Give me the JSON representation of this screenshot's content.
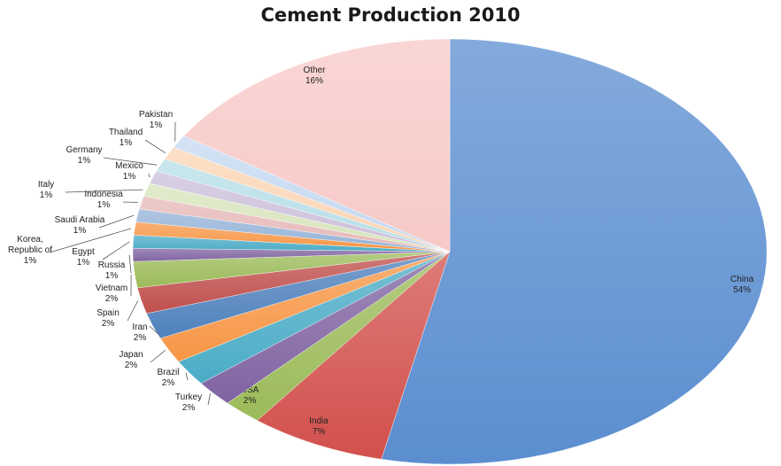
{
  "chart_data": {
    "type": "pie",
    "title": "Cement Production 2010",
    "start": "12 o'clock",
    "direction": "clockwise",
    "slices": [
      {
        "name": "China",
        "value": 54,
        "label": "54%",
        "color": "#5b8ed0"
      },
      {
        "name": "India",
        "value": 7,
        "label": "7%",
        "color": "#d2504c"
      },
      {
        "name": "USA",
        "value": 2,
        "label": "2%",
        "color": "#9bbb59"
      },
      {
        "name": "Turkey",
        "value": 2,
        "label": "2%",
        "color": "#8064a2"
      },
      {
        "name": "Brazil",
        "value": 2,
        "label": "2%",
        "color": "#4bacc6"
      },
      {
        "name": "Japan",
        "value": 2,
        "label": "2%",
        "color": "#f79646"
      },
      {
        "name": "Iran",
        "value": 2,
        "label": "2%",
        "color": "#4f81bd"
      },
      {
        "name": "Spain",
        "value": 2,
        "label": "2%",
        "color": "#c0504d"
      },
      {
        "name": "Vietnam",
        "value": 2,
        "label": "2%",
        "color": "#9bbb59"
      },
      {
        "name": "Russia",
        "value": 1,
        "label": "1%",
        "color": "#8064a2"
      },
      {
        "name": "Egypt",
        "value": 1,
        "label": "1%",
        "color": "#4bacc6"
      },
      {
        "name": "Korea,\nRepublic of",
        "value": 1,
        "label": "1%",
        "color": "#f79646"
      },
      {
        "name": "Saudi Arabia",
        "value": 1,
        "label": "1%",
        "color": "#95b3d7"
      },
      {
        "name": "Indonesia",
        "value": 1,
        "label": "1%",
        "color": "#e6b9b8"
      },
      {
        "name": "Italy",
        "value": 1,
        "label": "1%",
        "color": "#d7e4bc"
      },
      {
        "name": "Mexico",
        "value": 1,
        "label": "1%",
        "color": "#ccc0da"
      },
      {
        "name": "Germany",
        "value": 1,
        "label": "1%",
        "color": "#b7dee8"
      },
      {
        "name": "Thailand",
        "value": 1,
        "label": "1%",
        "color": "#fcd5b4"
      },
      {
        "name": "Pakistan",
        "value": 1,
        "label": "1%",
        "color": "#c5d9f1"
      },
      {
        "name": "Other",
        "value": 16,
        "label": "16%",
        "color": "#f7c9c7"
      }
    ]
  }
}
